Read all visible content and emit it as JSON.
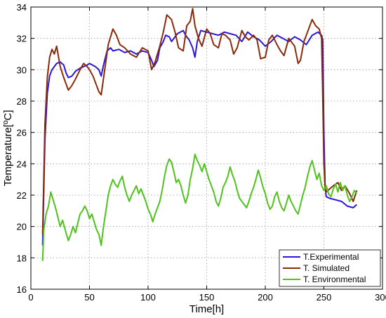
{
  "chart_data": {
    "type": "line",
    "xlabel": "Time[h]",
    "ylabel": "Temperature[ºC]",
    "xlim": [
      0,
      300
    ],
    "ylim": [
      16,
      34
    ],
    "xticks": [
      0,
      50,
      100,
      150,
      200,
      250,
      300
    ],
    "yticks": [
      16,
      18,
      20,
      22,
      24,
      26,
      28,
      30,
      32,
      34
    ],
    "grid": true,
    "legend_position": "bottom-right",
    "series": [
      {
        "name": "T.Experimental",
        "color": "#2a18d6",
        "x": [
          10,
          12,
          14,
          16,
          18,
          20,
          22,
          25,
          28,
          30,
          32,
          35,
          38,
          42,
          45,
          48,
          50,
          55,
          58,
          60,
          62,
          65,
          68,
          70,
          75,
          80,
          85,
          90,
          95,
          100,
          103,
          105,
          108,
          110,
          113,
          115,
          118,
          120,
          125,
          130,
          132,
          135,
          138,
          140,
          142,
          145,
          150,
          155,
          160,
          165,
          170,
          175,
          180,
          185,
          190,
          195,
          200,
          205,
          210,
          215,
          220,
          225,
          230,
          235,
          240,
          245,
          248,
          249,
          250,
          251,
          252,
          255,
          260,
          265,
          270,
          275,
          278
        ],
        "y": [
          18.8,
          25.5,
          28.5,
          29.6,
          30.0,
          30.2,
          30.4,
          30.5,
          30.3,
          29.8,
          29.5,
          29.6,
          29.9,
          30.1,
          30.2,
          30.3,
          30.4,
          30.2,
          30.0,
          29.6,
          30.3,
          31.2,
          31.4,
          31.2,
          31.3,
          31.1,
          31.2,
          31.0,
          31.2,
          31.1,
          30.6,
          30.2,
          30.6,
          31.4,
          31.8,
          32.2,
          32.1,
          31.8,
          32.3,
          32.5,
          32.2,
          31.9,
          31.4,
          30.8,
          31.8,
          32.5,
          32.4,
          32.3,
          32.2,
          32.4,
          32.3,
          32.2,
          31.8,
          32.4,
          32.1,
          31.9,
          31.5,
          31.8,
          32.2,
          32.0,
          31.8,
          32.1,
          31.9,
          31.6,
          32.2,
          32.4,
          32.2,
          31.9,
          26.0,
          22.6,
          21.9,
          21.8,
          21.7,
          21.6,
          21.3,
          21.2,
          21.4
        ]
      },
      {
        "name": "T. Simulated",
        "color": "#8b2a0a",
        "x": [
          10,
          12,
          14,
          16,
          18,
          20,
          22,
          25,
          28,
          32,
          35,
          38,
          42,
          45,
          48,
          50,
          53,
          56,
          58,
          60,
          63,
          66,
          70,
          73,
          76,
          80,
          85,
          90,
          95,
          100,
          103,
          106,
          110,
          113,
          116,
          120,
          123,
          126,
          130,
          133,
          136,
          138,
          140,
          143,
          146,
          150,
          153,
          156,
          160,
          163,
          166,
          170,
          173,
          176,
          180,
          183,
          186,
          190,
          193,
          196,
          200,
          203,
          206,
          210,
          213,
          216,
          220,
          225,
          228,
          230,
          233,
          236,
          240,
          243,
          246,
          248,
          249,
          250,
          251,
          252,
          255,
          258,
          262,
          265,
          268,
          272,
          275,
          278
        ],
        "y": [
          19.5,
          26.5,
          29.5,
          30.8,
          31.3,
          31.0,
          31.5,
          30.2,
          29.5,
          28.7,
          29.0,
          29.4,
          30.0,
          30.4,
          30.2,
          30.0,
          29.6,
          29.0,
          28.6,
          28.4,
          30.0,
          31.6,
          32.6,
          32.2,
          31.6,
          31.4,
          31.0,
          30.8,
          31.4,
          31.2,
          30.0,
          30.5,
          31.5,
          32.4,
          33.5,
          33.2,
          32.4,
          31.4,
          31.2,
          32.8,
          33.1,
          33.9,
          32.8,
          32.0,
          31.5,
          32.6,
          32.3,
          31.6,
          31.4,
          32.3,
          32.2,
          31.9,
          31.0,
          31.4,
          32.5,
          32.1,
          31.9,
          32.2,
          31.9,
          30.7,
          30.8,
          31.9,
          32.2,
          31.6,
          31.2,
          30.9,
          32.0,
          31.5,
          30.4,
          30.6,
          31.8,
          32.4,
          33.2,
          32.8,
          32.6,
          32.0,
          28.5,
          24.0,
          22.5,
          22.2,
          22.4,
          22.6,
          22.8,
          22.3,
          22.6,
          22.1,
          21.6,
          22.3
        ]
      },
      {
        "name": "T. Environmental",
        "color": "#4fc21c",
        "x": [
          10,
          11,
          13,
          15,
          17,
          19,
          21,
          23,
          25,
          27,
          30,
          32,
          34,
          36,
          38,
          40,
          42,
          44,
          46,
          48,
          50,
          52,
          54,
          56,
          58,
          60,
          62,
          64,
          66,
          68,
          70,
          72,
          74,
          76,
          78,
          80,
          82,
          84,
          86,
          88,
          90,
          92,
          94,
          96,
          98,
          100,
          102,
          104,
          106,
          108,
          110,
          112,
          114,
          116,
          118,
          120,
          122,
          124,
          126,
          128,
          130,
          132,
          134,
          136,
          138,
          140,
          142,
          144,
          146,
          148,
          150,
          152,
          154,
          156,
          158,
          160,
          162,
          164,
          166,
          168,
          170,
          172,
          174,
          176,
          178,
          180,
          182,
          184,
          186,
          188,
          190,
          192,
          194,
          196,
          198,
          200,
          202,
          204,
          206,
          208,
          210,
          212,
          214,
          216,
          218,
          220,
          222,
          224,
          226,
          228,
          230,
          232,
          234,
          236,
          238,
          240,
          242,
          244,
          246,
          248,
          250,
          252,
          254,
          256,
          258,
          260,
          262,
          264,
          266,
          268,
          270,
          272,
          274,
          276,
          278
        ],
        "y": [
          17.8,
          19.8,
          20.8,
          21.3,
          22.2,
          21.7,
          21.2,
          20.6,
          20.0,
          20.4,
          19.6,
          19.1,
          19.5,
          20.0,
          19.6,
          20.2,
          20.8,
          21.0,
          21.3,
          21.0,
          20.5,
          20.8,
          20.3,
          19.8,
          19.5,
          18.8,
          20.0,
          21.0,
          22.0,
          22.6,
          23.0,
          22.7,
          22.5,
          22.9,
          23.2,
          22.5,
          22.0,
          21.6,
          22.0,
          22.3,
          22.6,
          22.1,
          22.4,
          22.0,
          21.6,
          21.1,
          20.8,
          20.3,
          20.8,
          21.2,
          21.6,
          22.3,
          23.2,
          23.9,
          24.3,
          24.1,
          23.5,
          22.8,
          23.0,
          22.6,
          22.0,
          21.5,
          22.0,
          23.0,
          23.7,
          24.6,
          24.2,
          23.9,
          23.5,
          24.0,
          23.5,
          23.0,
          22.6,
          22.2,
          21.6,
          21.3,
          21.8,
          22.5,
          22.8,
          23.2,
          23.8,
          23.3,
          22.9,
          22.3,
          21.8,
          21.6,
          21.4,
          21.2,
          21.6,
          22.1,
          22.5,
          23.0,
          23.6,
          23.1,
          22.5,
          22.1,
          21.5,
          21.1,
          21.3,
          21.9,
          22.2,
          21.6,
          21.2,
          21.0,
          21.5,
          22.0,
          21.6,
          21.3,
          21.0,
          20.8,
          21.4,
          22.0,
          22.5,
          23.2,
          23.8,
          24.2,
          23.6,
          23.0,
          23.4,
          22.6,
          22.3,
          22.6,
          22.1,
          21.9,
          22.4,
          22.7,
          22.2,
          22.8,
          22.3,
          22.6,
          22.0,
          21.6,
          21.9,
          22.3,
          22.1
        ]
      }
    ]
  }
}
